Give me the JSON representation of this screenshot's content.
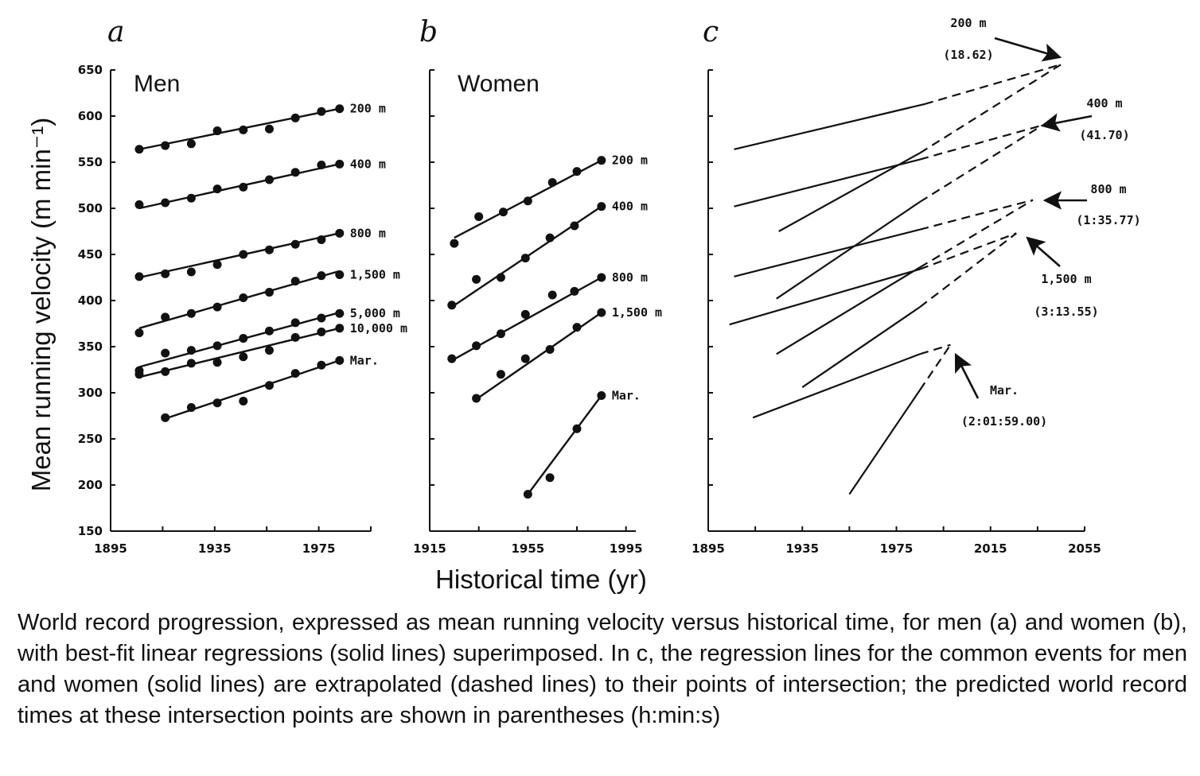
{
  "caption": "World record progression, expressed as mean running velocity versus historical time, for men (a) and women (b), with best-fit linear regressions (solid lines) superimposed. In c, the regression lines for the common events for men and women (solid lines) are extrapolated (dashed lines) to their points of intersection; the predicted world record times at these intersection points are shown in parentheses (h:min:s)",
  "chart_data": [
    {
      "panel": "a",
      "type": "scatter",
      "title": "Men",
      "ylabel": "Mean running velocity (m min⁻¹)",
      "xlabel": "Historical time (yr)",
      "xlim": [
        1895,
        1995
      ],
      "ylim": [
        150,
        650
      ],
      "xticks": [
        1895,
        1935,
        1975
      ],
      "yticks": [
        150,
        200,
        250,
        300,
        350,
        400,
        450,
        500,
        550,
        600,
        650
      ],
      "series": [
        {
          "name": "200 m",
          "fit": [
            [
              1906,
              564
            ],
            [
              1983,
              608
            ]
          ],
          "points": [
            [
              1906,
              564
            ],
            [
              1916,
              568
            ],
            [
              1926,
              570
            ],
            [
              1936,
              584
            ],
            [
              1946,
              585
            ],
            [
              1956,
              586
            ],
            [
              1966,
              598
            ],
            [
              1976,
              605
            ],
            [
              1983,
              608
            ]
          ]
        },
        {
          "name": "400 m",
          "fit": [
            [
              1906,
              500
            ],
            [
              1983,
              548
            ]
          ],
          "points": [
            [
              1906,
              504
            ],
            [
              1916,
              506
            ],
            [
              1926,
              511
            ],
            [
              1936,
              521
            ],
            [
              1946,
              523
            ],
            [
              1956,
              531
            ],
            [
              1966,
              539
            ],
            [
              1976,
              547
            ],
            [
              1983,
              548
            ]
          ]
        },
        {
          "name": "800 m",
          "fit": [
            [
              1906,
              425
            ],
            [
              1983,
              473
            ]
          ],
          "points": [
            [
              1906,
              426
            ],
            [
              1916,
              429
            ],
            [
              1926,
              431
            ],
            [
              1936,
              439
            ],
            [
              1946,
              450
            ],
            [
              1956,
              455
            ],
            [
              1966,
              461
            ],
            [
              1976,
              466
            ],
            [
              1983,
              473
            ]
          ]
        },
        {
          "name": "1,500 m",
          "fit": [
            [
              1906,
              370
            ],
            [
              1983,
              432
            ]
          ],
          "points": [
            [
              1906,
              365
            ],
            [
              1916,
              382
            ],
            [
              1926,
              386
            ],
            [
              1936,
              393
            ],
            [
              1946,
              403
            ],
            [
              1956,
              409
            ],
            [
              1966,
              421
            ],
            [
              1976,
              427
            ],
            [
              1983,
              428
            ]
          ]
        },
        {
          "name": "5,000 m",
          "fit": [
            [
              1906,
              328
            ],
            [
              1983,
              387
            ]
          ],
          "points": [
            [
              1906,
              324
            ],
            [
              1916,
              343
            ],
            [
              1926,
              346
            ],
            [
              1936,
              351
            ],
            [
              1946,
              359
            ],
            [
              1956,
              367
            ],
            [
              1966,
              376
            ],
            [
              1976,
              381
            ],
            [
              1983,
              386
            ]
          ]
        },
        {
          "name": "10,000 m",
          "fit": [
            [
              1906,
              317
            ],
            [
              1983,
              370
            ]
          ],
          "points": [
            [
              1906,
              320
            ],
            [
              1916,
              323
            ],
            [
              1926,
              332
            ],
            [
              1936,
              333
            ],
            [
              1946,
              339
            ],
            [
              1956,
              346
            ],
            [
              1966,
              360
            ],
            [
              1976,
              366
            ],
            [
              1983,
              370
            ]
          ]
        },
        {
          "name": "Mar.",
          "fit": [
            [
              1916,
              272
            ],
            [
              1983,
              335
            ]
          ],
          "points": [
            [
              1916,
              273
            ],
            [
              1926,
              284
            ],
            [
              1936,
              289
            ],
            [
              1946,
              291
            ],
            [
              1956,
              308
            ],
            [
              1966,
              321
            ],
            [
              1976,
              330
            ],
            [
              1983,
              335
            ]
          ]
        }
      ]
    },
    {
      "panel": "b",
      "type": "scatter",
      "title": "Women",
      "xlim": [
        1915,
        1999
      ],
      "ylim": [
        150,
        650
      ],
      "xticks": [
        1915,
        1955,
        1995
      ],
      "series": [
        {
          "name": "200 m",
          "fit": [
            [
              1925,
              468
            ],
            [
              1985,
              552
            ]
          ],
          "points": [
            [
              1925,
              462
            ],
            [
              1935,
              491
            ],
            [
              1945,
              496
            ],
            [
              1955,
              508
            ],
            [
              1965,
              528
            ],
            [
              1975,
              540
            ],
            [
              1985,
              552
            ]
          ]
        },
        {
          "name": "400 m",
          "fit": [
            [
              1924,
              393
            ],
            [
              1985,
              502
            ]
          ],
          "points": [
            [
              1924,
              395
            ],
            [
              1934,
              423
            ],
            [
              1944,
              425
            ],
            [
              1954,
              446
            ],
            [
              1964,
              468
            ],
            [
              1974,
              481
            ],
            [
              1985,
              502
            ]
          ]
        },
        {
          "name": "800 m",
          "fit": [
            [
              1924,
              335
            ],
            [
              1985,
              425
            ]
          ],
          "points": [
            [
              1924,
              337
            ],
            [
              1934,
              351
            ],
            [
              1944,
              364
            ],
            [
              1954,
              385
            ],
            [
              1965,
              406
            ],
            [
              1974,
              410
            ],
            [
              1985,
              425
            ]
          ]
        },
        {
          "name": "1,500 m",
          "fit": [
            [
              1934,
              293
            ],
            [
              1985,
              387
            ]
          ],
          "points": [
            [
              1934,
              294
            ],
            [
              1944,
              320
            ],
            [
              1954,
              337
            ],
            [
              1964,
              347
            ],
            [
              1975,
              371
            ],
            [
              1985,
              387
            ]
          ]
        },
        {
          "name": "Mar.",
          "fit": [
            [
              1955,
              190
            ],
            [
              1985,
              297
            ]
          ],
          "points": [
            [
              1955,
              190
            ],
            [
              1964,
              208
            ],
            [
              1975,
              261
            ],
            [
              1985,
              297
            ]
          ]
        }
      ]
    },
    {
      "panel": "c",
      "type": "line",
      "xlim": [
        1895,
        2055
      ],
      "ylim": [
        150,
        650
      ],
      "xticks": [
        1895,
        1935,
        1975,
        2015,
        2055
      ],
      "lines": [
        {
          "event": "200 m",
          "sex": "men",
          "solid": [
            [
              1906,
              564
            ],
            [
              1987,
              613
            ]
          ],
          "dashed": [
            [
              1987,
              613
            ],
            [
              2045,
              656
            ]
          ]
        },
        {
          "event": "200 m",
          "sex": "women",
          "solid": [
            [
              1925,
              475
            ],
            [
              1985,
              560
            ]
          ],
          "dashed": [
            [
              1985,
              560
            ],
            [
              2045,
              656
            ]
          ]
        },
        {
          "event": "400 m",
          "sex": "men",
          "solid": [
            [
              1906,
              502
            ],
            [
              1985,
              553
            ]
          ],
          "dashed": [
            [
              1985,
              553
            ],
            [
              2037,
              590
            ]
          ]
        },
        {
          "event": "400 m",
          "sex": "women",
          "solid": [
            [
              1924,
              402
            ],
            [
              1985,
              507
            ]
          ],
          "dashed": [
            [
              1985,
              507
            ],
            [
              2037,
              590
            ]
          ]
        },
        {
          "event": "800 m",
          "sex": "men",
          "solid": [
            [
              1906,
              426
            ],
            [
              1985,
              477
            ]
          ],
          "dashed": [
            [
              1985,
              477
            ],
            [
              2033,
              509
            ]
          ]
        },
        {
          "event": "800 m",
          "sex": "women",
          "solid": [
            [
              1924,
              342
            ],
            [
              1985,
              436
            ]
          ],
          "dashed": [
            [
              1985,
              436
            ],
            [
              2033,
              509
            ]
          ]
        },
        {
          "event": "1,500 m",
          "sex": "men",
          "solid": [
            [
              1904,
              374
            ],
            [
              1985,
              434
            ]
          ],
          "dashed": [
            [
              1985,
              434
            ],
            [
              2026,
              473
            ]
          ]
        },
        {
          "event": "1,500 m",
          "sex": "women",
          "solid": [
            [
              1935,
              306
            ],
            [
              1985,
              393
            ]
          ],
          "dashed": [
            [
              1985,
              393
            ],
            [
              2026,
              473
            ]
          ]
        },
        {
          "event": "Mar.",
          "sex": "men",
          "solid": [
            [
              1914,
              273
            ],
            [
              1985,
              342
            ]
          ],
          "dashed": [
            [
              1985,
              342
            ],
            [
              1998,
              352
            ]
          ]
        },
        {
          "event": "Mar.",
          "sex": "women",
          "solid": [
            [
              1955,
              190
            ],
            [
              1985,
              303
            ]
          ],
          "dashed": [
            [
              1985,
              303
            ],
            [
              1998,
              352
            ]
          ]
        }
      ],
      "annotations": [
        {
          "event": "200 m",
          "time": "(18.62)"
        },
        {
          "event": "400 m",
          "time": "(41.70)"
        },
        {
          "event": "800 m",
          "time": "(1:35.77)"
        },
        {
          "event": "1,500 m",
          "time": "(3:13.55)"
        },
        {
          "event": "Mar.",
          "time": "(2:01:59.00)"
        }
      ]
    }
  ]
}
